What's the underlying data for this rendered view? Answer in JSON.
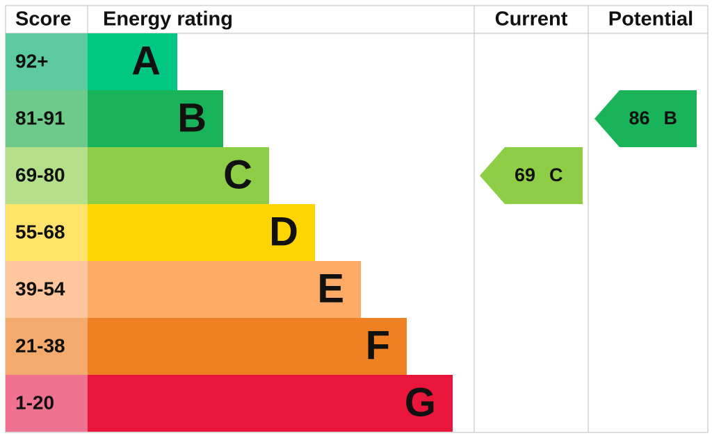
{
  "headers": {
    "score": "Score",
    "energy_rating": "Energy rating",
    "current": "Current",
    "potential": "Potential"
  },
  "bands": [
    {
      "score": "92+",
      "letter": "A",
      "color": "#00c781",
      "score_color": "#5cc9a0"
    },
    {
      "score": "81-91",
      "letter": "B",
      "color": "#19b459",
      "score_color": "#6dca8a"
    },
    {
      "score": "69-80",
      "letter": "C",
      "color": "#8dce46",
      "score_color": "#b6df8c"
    },
    {
      "score": "55-68",
      "letter": "D",
      "color": "#ffd500",
      "score_color": "#ffe36a"
    },
    {
      "score": "39-54",
      "letter": "E",
      "color": "#fcaa65",
      "score_color": "#fdc69c"
    },
    {
      "score": "21-38",
      "letter": "F",
      "color": "#ef8023",
      "score_color": "#f4aa6c"
    },
    {
      "score": "1-20",
      "letter": "G",
      "color": "#e9153b",
      "score_color": "#ef7390"
    }
  ],
  "current": {
    "value": "69",
    "letter": "C"
  },
  "potential": {
    "value": "86",
    "letter": "B"
  }
}
